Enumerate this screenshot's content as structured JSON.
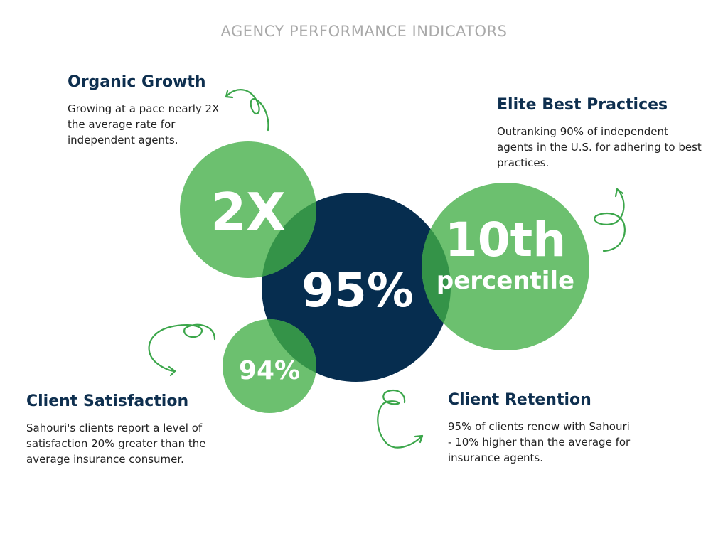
{
  "title": "AGENCY PERFORMANCE INDICATORS",
  "colors": {
    "green": "#6cc06f",
    "green_overlap": "#349348",
    "navy": "#062d4f",
    "doodle": "#3ba64a",
    "heading": "#0e2f4f"
  },
  "blocks": {
    "organic_growth": {
      "heading": "Organic Growth",
      "text": "Growing at a pace nearly 2X the average rate for independent agents."
    },
    "elite_best_practices": {
      "heading": "Elite Best Practices",
      "text": "Outranking 90% of independent agents in the U.S. for adhering to best practices."
    },
    "client_satisfaction": {
      "heading": "Client Satisfaction",
      "text": "Sahouri's clients report a level of satisfaction 20% greater than the average insurance consumer."
    },
    "client_retention": {
      "heading": "Client Retention",
      "text": "95% of clients renew with Sahouri - 10% higher than the average for insurance agents."
    }
  },
  "circles": {
    "growth_value": "2X",
    "retention_value": "95%",
    "practices_value": "10th",
    "practices_label": "percentile",
    "satisfaction_value": "94%"
  }
}
